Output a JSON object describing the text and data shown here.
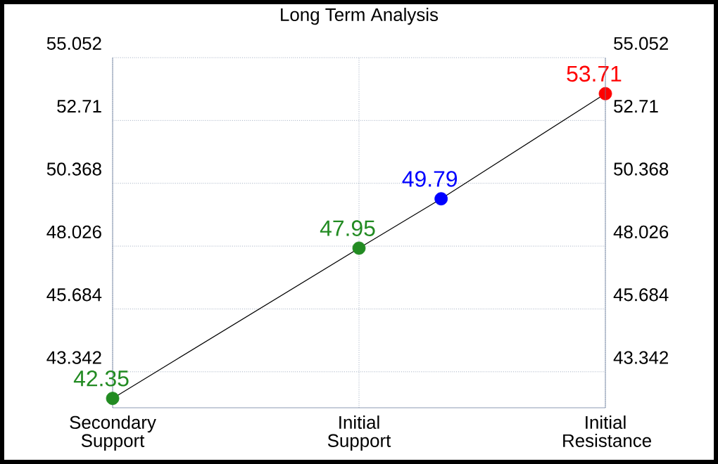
{
  "chart_data": {
    "type": "line",
    "title": "Long Term Analysis",
    "categories": [
      "Secondary Support",
      null,
      null,
      "Initial Support",
      null,
      null,
      "Initial Resistance"
    ],
    "ylim": [
      42.0,
      55.052
    ],
    "yticks": [
      43.342,
      45.684,
      48.026,
      50.368,
      52.71,
      55.052
    ],
    "y2lim": [
      42.0,
      55.052
    ],
    "y2ticks": [
      43.342,
      45.684,
      48.026,
      50.368,
      52.71,
      55.052
    ],
    "grid": true,
    "series": [
      {
        "color": "#000000",
        "values": [
          42.35,
          null,
          null,
          47.95,
          49.79,
          null,
          53.71
        ]
      },
      {
        "type": "scatter",
        "colors": [
          "#228b22",
          null,
          null,
          "#228b22",
          "#0000ff",
          null,
          "#ff0000"
        ],
        "values": [
          42.35,
          null,
          null,
          47.95,
          49.79,
          null,
          53.71
        ],
        "value_labels": [
          "42.35",
          null,
          null,
          "47.95",
          "49.79",
          null,
          "53.71"
        ]
      }
    ]
  }
}
